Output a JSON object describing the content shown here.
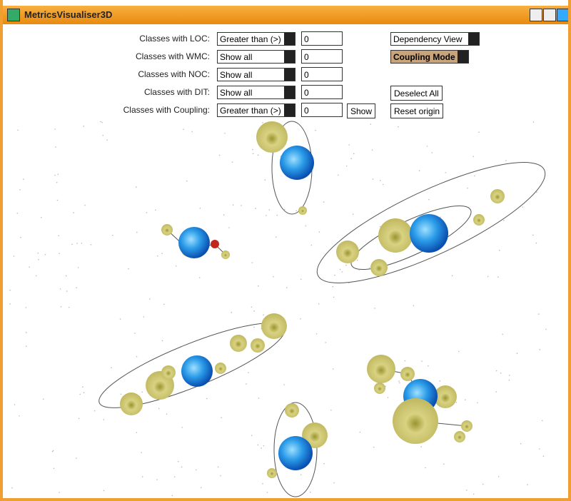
{
  "window": {
    "title": "MetricsVisualiser3D"
  },
  "filters": [
    {
      "label": "Classes with LOC:",
      "mode": "Greater than (>)",
      "value": "0"
    },
    {
      "label": "Classes with WMC:",
      "mode": "Show all",
      "value": "0"
    },
    {
      "label": "Classes with NOC:",
      "mode": "Show all",
      "value": "0"
    },
    {
      "label": "Classes with DIT:",
      "mode": "Show all",
      "value": "0"
    },
    {
      "label": "Classes with Coupling:",
      "mode": "Greater than (>)",
      "value": "0"
    }
  ],
  "show_button": "Show",
  "view_select": "Dependency View",
  "mode_select": "Coupling Mode",
  "deselect_button": "Deselect All",
  "reset_button": "Reset origin"
}
